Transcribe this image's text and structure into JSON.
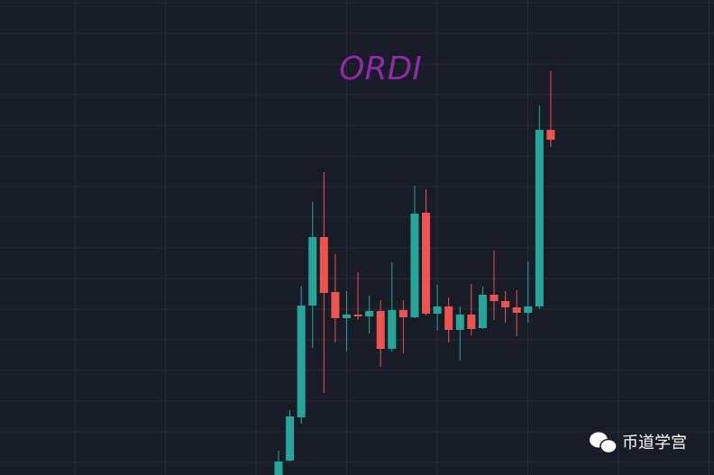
{
  "chart_data": {
    "type": "candlestick",
    "title": "ORDI",
    "watermark": "币道学宫",
    "open": [
      0,
      1.6,
      6.4,
      18.8,
      26.4,
      20.3,
      17.4,
      17.8,
      17.6,
      18.2,
      14.0,
      18.3,
      17.5,
      29.1,
      17.9,
      18.7,
      16.1,
      17.8,
      16.3,
      20.0,
      19.3,
      18.6,
      18.0,
      18.7,
      38.3
    ],
    "high": [
      2.7,
      7.2,
      20.9,
      30.3,
      33.6,
      24.5,
      20.4,
      22.5,
      19.9,
      19.4,
      23.6,
      19.4,
      32.1,
      31.7,
      21.1,
      19.7,
      18.7,
      21.2,
      20.9,
      24.9,
      20.4,
      20.5,
      23.7,
      41.0,
      44.8
    ],
    "low": [
      0,
      1.5,
      5.7,
      14.1,
      9.1,
      14.7,
      13.7,
      17.2,
      15.7,
      12.0,
      13.7,
      13.5,
      17.4,
      17.7,
      16.0,
      14.7,
      12.7,
      15.5,
      16.2,
      17.2,
      16.9,
      15.4,
      16.9,
      18.4,
      36.4
    ],
    "close": [
      1.5,
      6.5,
      18.8,
      26.4,
      20.2,
      17.4,
      17.8,
      17.6,
      18.2,
      14.0,
      18.3,
      17.5,
      29.0,
      17.9,
      18.7,
      16.1,
      17.8,
      16.2,
      20.0,
      19.3,
      18.6,
      18.0,
      18.7,
      38.3,
      37.2
    ],
    "up_color": "#26a69a",
    "down_color": "#ef5350",
    "title_color": "#8e2aa8",
    "ylim": [
      0,
      52.7
    ],
    "grid": true
  }
}
